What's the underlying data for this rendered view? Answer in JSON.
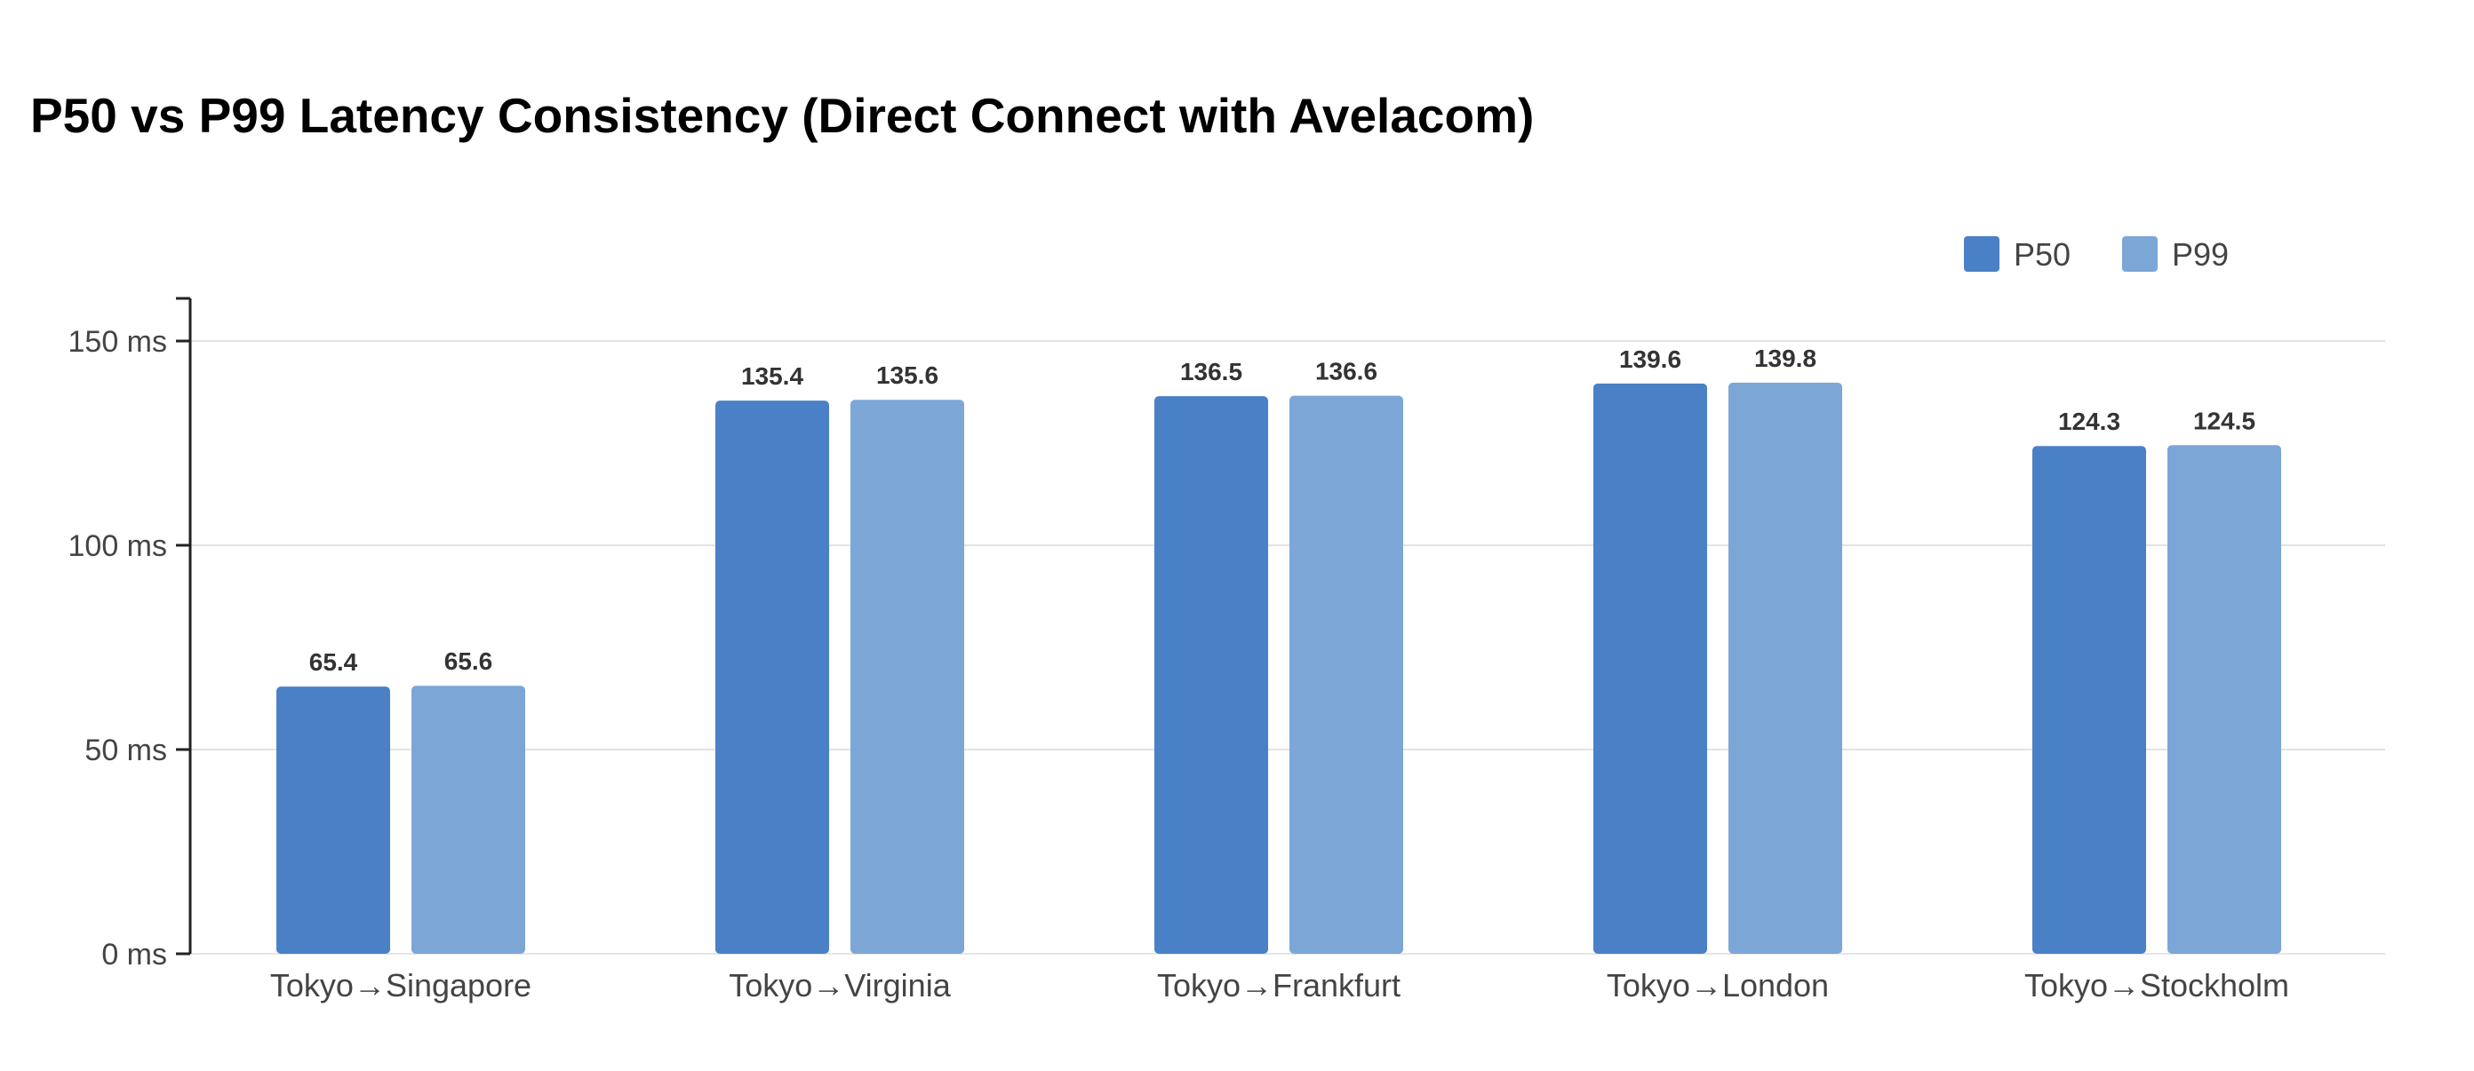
{
  "chart_data": {
    "type": "bar",
    "title": "P50 vs P99 Latency Consistency (Direct Connect with Avelacom)",
    "xlabel": "",
    "ylabel": "",
    "categories": [
      "Tokyo→Singapore",
      "Tokyo→Virginia",
      "Tokyo→Frankfurt",
      "Tokyo→London",
      "Tokyo→Stockholm"
    ],
    "series": [
      {
        "name": "P50",
        "values": [
          65.4,
          135.4,
          136.5,
          139.6,
          124.3
        ],
        "color": "#4a80c6"
      },
      {
        "name": "P99",
        "values": [
          65.6,
          135.6,
          136.6,
          139.8,
          124.5
        ],
        "color": "#7ca6d6"
      }
    ],
    "value_labels": {
      "P50": [
        "65.4",
        "135.4",
        "136.5",
        "139.6",
        "124.3"
      ],
      "P99": [
        "65.6",
        "135.6",
        "136.6",
        "139.8",
        "124.5"
      ]
    },
    "ylim": [
      0,
      150
    ],
    "yticks": [
      0,
      50,
      100,
      150
    ],
    "ytick_labels": [
      "0 ms",
      "50 ms",
      "100 ms",
      "150 ms"
    ],
    "grid": true,
    "legend_position": "top-right"
  }
}
